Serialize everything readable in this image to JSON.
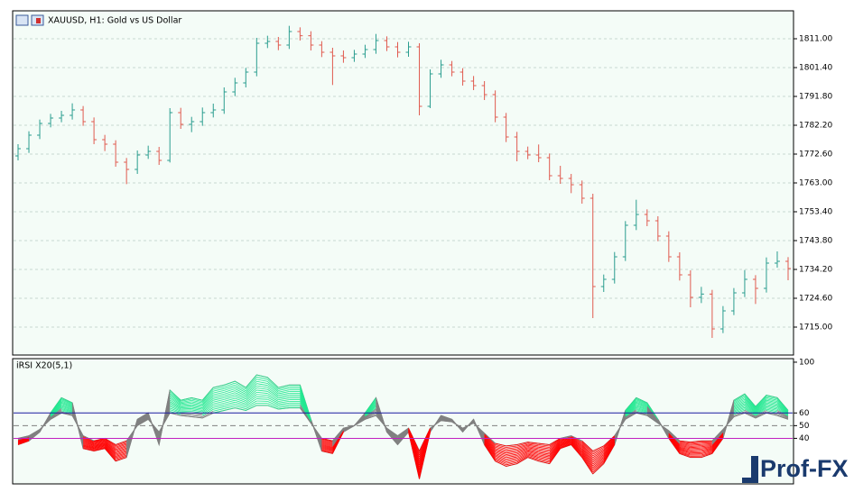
{
  "chart_data": [
    {
      "type": "ohlc",
      "title": "XAUUSD, H1:  Gold vs US Dollar",
      "open": [
        1772.0,
        1774.4,
        1778.9,
        1782.8,
        1784.6,
        1785.5,
        1787.3,
        1783.4,
        1777.4,
        1775.9,
        1769.9,
        1767.5,
        1772.3,
        1773.5,
        1770.5,
        1786.4,
        1782.5,
        1783.4,
        1786.4,
        1787.3,
        1793.3,
        1796.3,
        1799.9,
        1809.5,
        1810.1,
        1808.9,
        1813.4,
        1812.0,
        1808.9,
        1806.5,
        1805.3,
        1804.7,
        1805.9,
        1807.4,
        1810.4,
        1808.3,
        1806.5,
        1808.3,
        1788.5,
        1799.3,
        1802.3,
        1799.9,
        1796.9,
        1795.4,
        1792.4,
        1784.9,
        1778.3,
        1773.5,
        1772.3,
        1771.4,
        1765.4,
        1764.5,
        1762.4,
        1757.9,
        1728.5,
        1730.9,
        1738.4,
        1748.9,
        1752.5,
        1750.4,
        1745.3,
        1738.4,
        1732.4,
        1724.9,
        1726.0,
        1714.4,
        1720.4,
        1726.4,
        1730.9,
        1727.9,
        1736.3,
        1736.9
      ],
      "high": [
        1775.9,
        1780.2,
        1784.1,
        1786.0,
        1787.0,
        1789.5,
        1788.6,
        1784.8,
        1779.0,
        1777.2,
        1771.3,
        1773.8,
        1775.4,
        1775.0,
        1787.9,
        1788.0,
        1785.0,
        1788.1,
        1789.4,
        1794.8,
        1798.0,
        1801.3,
        1811.3,
        1812.0,
        1811.6,
        1815.3,
        1814.8,
        1813.5,
        1810.2,
        1808.0,
        1807.1,
        1807.3,
        1809.0,
        1812.6,
        1811.8,
        1809.9,
        1810.0,
        1809.5,
        1800.8,
        1804.0,
        1803.6,
        1801.2,
        1798.6,
        1796.9,
        1793.8,
        1786.3,
        1780.0,
        1775.1,
        1775.8,
        1772.8,
        1768.7,
        1766.0,
        1763.8,
        1759.4,
        1732.5,
        1740.0,
        1750.3,
        1757.4,
        1754.2,
        1751.9,
        1746.9,
        1739.9,
        1733.9,
        1728.4,
        1727.4,
        1722.0,
        1728.0,
        1734.0,
        1732.3,
        1738.2,
        1740.2,
        1738.3
      ],
      "low": [
        1770.5,
        1773.0,
        1777.6,
        1781.5,
        1783.2,
        1784.1,
        1782.0,
        1775.9,
        1773.6,
        1768.4,
        1762.6,
        1766.0,
        1771.0,
        1769.0,
        1769.8,
        1781.0,
        1779.9,
        1782.0,
        1784.8,
        1786.0,
        1791.9,
        1794.8,
        1798.5,
        1807.9,
        1807.2,
        1807.6,
        1810.4,
        1807.1,
        1804.9,
        1795.6,
        1803.0,
        1803.3,
        1804.6,
        1806.0,
        1806.9,
        1804.8,
        1805.0,
        1785.5,
        1787.9,
        1798.0,
        1798.5,
        1795.4,
        1793.9,
        1790.6,
        1783.2,
        1776.6,
        1770.2,
        1770.9,
        1769.9,
        1763.9,
        1762.7,
        1759.6,
        1756.1,
        1718.0,
        1726.7,
        1729.5,
        1737.0,
        1747.3,
        1748.6,
        1743.6,
        1736.7,
        1730.5,
        1721.6,
        1723.0,
        1711.4,
        1713.0,
        1719.0,
        1725.0,
        1722.7,
        1726.5,
        1734.8,
        1730.6
      ],
      "close": [
        1774.4,
        1778.9,
        1782.8,
        1784.6,
        1785.5,
        1787.3,
        1783.4,
        1777.4,
        1775.9,
        1769.9,
        1767.5,
        1772.3,
        1773.5,
        1770.5,
        1786.4,
        1782.5,
        1783.4,
        1786.4,
        1787.3,
        1793.3,
        1796.3,
        1799.9,
        1809.5,
        1810.1,
        1808.9,
        1813.4,
        1812.0,
        1808.9,
        1806.5,
        1805.3,
        1804.7,
        1805.9,
        1807.4,
        1810.4,
        1808.3,
        1806.5,
        1808.3,
        1788.5,
        1799.3,
        1802.3,
        1799.9,
        1796.9,
        1795.4,
        1792.4,
        1784.9,
        1778.3,
        1773.5,
        1772.3,
        1771.4,
        1765.4,
        1764.5,
        1762.4,
        1757.9,
        1728.5,
        1730.9,
        1738.4,
        1748.9,
        1752.5,
        1750.4,
        1745.3,
        1738.4,
        1732.4,
        1724.9,
        1726.0,
        1714.4,
        1720.4,
        1726.4,
        1730.9,
        1727.9,
        1736.3,
        1736.9,
        1734.5
      ],
      "up_color": "#2a9d8f",
      "down_color": "#e05a4f",
      "ylim": [
        1705.7,
        1820.3
      ],
      "yticks": [
        {
          "value": 1811,
          "label": "1811.00"
        },
        {
          "value": 1801.4,
          "label": "1801.40"
        },
        {
          "value": 1791.8,
          "label": "1791.80"
        },
        {
          "value": 1782.2,
          "label": "1782.20"
        },
        {
          "value": 1772.6,
          "label": "1772.60"
        },
        {
          "value": 1763,
          "label": "1763.00"
        },
        {
          "value": 1753.4,
          "label": "1753.40"
        },
        {
          "value": 1743.8,
          "label": "1743.80"
        },
        {
          "value": 1734.2,
          "label": "1734.20"
        },
        {
          "value": 1724.6,
          "label": "1724.60"
        },
        {
          "value": 1715,
          "label": "1715.00"
        }
      ],
      "grid": true
    },
    {
      "type": "rsi-band",
      "title": "iRSI X20(5,1)",
      "series": [
        {
          "color": "#808080",
          "values": [
            35,
            38,
            45,
            60,
            72,
            68,
            32,
            30,
            32,
            22,
            25,
            55,
            60,
            35,
            78,
            70,
            72,
            70,
            80,
            82,
            85,
            80,
            90,
            88,
            80,
            82,
            82,
            55,
            30,
            28,
            45,
            50,
            60,
            72,
            45,
            35,
            45,
            8,
            45,
            58,
            55,
            45,
            55,
            35,
            22,
            18,
            20,
            25,
            22,
            20,
            32,
            35,
            25,
            12,
            20,
            35,
            62,
            72,
            68,
            55,
            40,
            28,
            25,
            25,
            28,
            40,
            70,
            75,
            65,
            74,
            72,
            62
          ]
        },
        {
          "color": "#808080",
          "values": [
            40,
            42,
            47,
            55,
            60,
            58,
            42,
            38,
            40,
            35,
            38,
            50,
            55,
            45,
            60,
            58,
            57,
            56,
            60,
            62,
            64,
            62,
            66,
            66,
            63,
            64,
            64,
            52,
            40,
            38,
            48,
            50,
            55,
            58,
            48,
            42,
            48,
            30,
            48,
            54,
            53,
            48,
            52,
            44,
            36,
            34,
            35,
            37,
            36,
            35,
            40,
            42,
            38,
            30,
            34,
            42,
            55,
            60,
            58,
            52,
            46,
            38,
            37,
            38,
            38,
            47,
            57,
            60,
            56,
            60,
            58,
            55
          ]
        }
      ],
      "up_color": "#20e890",
      "down_color": "#ff0000",
      "mid_color": "#808080",
      "ylim": [
        4.1,
        102.8
      ],
      "yticks": [
        100,
        60,
        50,
        40
      ],
      "levels": [
        {
          "value": 60,
          "color": "#1a1aa0",
          "style": "solid"
        },
        {
          "value": 50,
          "color": "#808080",
          "style": "dashed"
        },
        {
          "value": 40,
          "color": "#c020c0",
          "style": "solid"
        }
      ]
    }
  ],
  "logo": "Prof-FX"
}
